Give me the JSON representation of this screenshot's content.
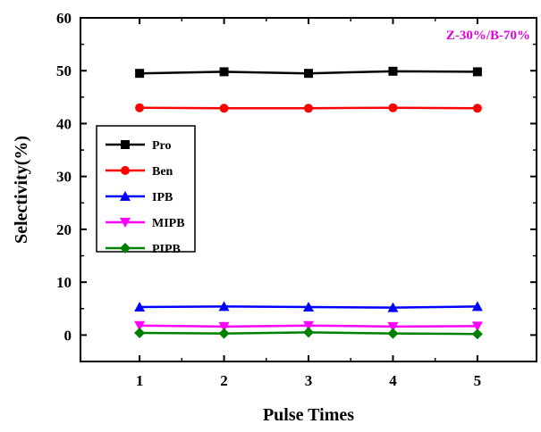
{
  "chart_data": {
    "type": "line",
    "xlabel": "Pulse Times",
    "ylabel": "Selectivity(%)",
    "annotation": "Z-30%/B-70%",
    "annotation_color": "#e000e0",
    "x": [
      1,
      2,
      3,
      4,
      5
    ],
    "xlim": [
      0.3,
      5.7
    ],
    "ylim": [
      -5,
      60
    ],
    "xticks": [
      "1",
      "2",
      "3",
      "4",
      "5"
    ],
    "yticks": [
      "0",
      "10",
      "20",
      "30",
      "40",
      "50",
      "60"
    ],
    "grid": false,
    "legend_position": "left-middle",
    "series": [
      {
        "name": "Pro",
        "color": "#000000",
        "marker": "square",
        "values": [
          49.5,
          49.8,
          49.5,
          49.9,
          49.8
        ]
      },
      {
        "name": "Ben",
        "color": "#ff0000",
        "marker": "circle",
        "values": [
          43.0,
          42.9,
          42.9,
          43.0,
          42.9
        ]
      },
      {
        "name": "IPB",
        "color": "#0000ff",
        "marker": "triangle-up",
        "values": [
          5.3,
          5.4,
          5.3,
          5.2,
          5.4
        ]
      },
      {
        "name": "MIPB",
        "color": "#ff00ff",
        "marker": "triangle-down",
        "values": [
          1.8,
          1.6,
          1.8,
          1.6,
          1.7
        ]
      },
      {
        "name": "PIPB",
        "color": "#008000",
        "marker": "diamond",
        "values": [
          0.4,
          0.3,
          0.5,
          0.3,
          0.2
        ]
      }
    ]
  }
}
